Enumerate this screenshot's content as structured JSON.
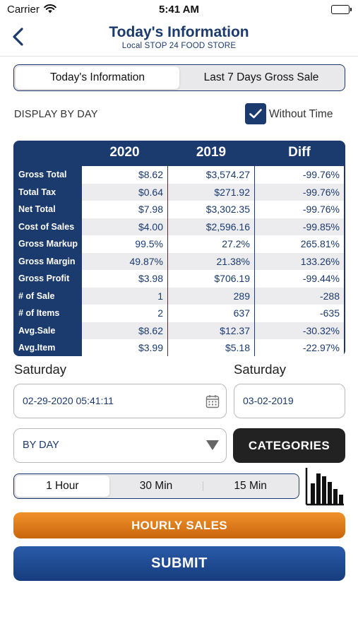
{
  "status_bar": {
    "carrier": "Carrier",
    "time": "5:41 AM"
  },
  "header": {
    "title": "Today's Information",
    "subtitle": "Local STOP 24 FOOD STORE"
  },
  "tabs": [
    {
      "label": "Today's Information",
      "active": true
    },
    {
      "label": "Last 7 Days Gross Sale",
      "active": false
    }
  ],
  "display_by_label": "DISPLAY BY DAY",
  "without_time": {
    "label": "Without Time",
    "checked": true
  },
  "table": {
    "headers": [
      "2020",
      "2019",
      "Diff"
    ],
    "rows": [
      {
        "label": "Gross Total",
        "v2020": "$8.62",
        "v2019": "$3,574.27",
        "diff": "-99.76%"
      },
      {
        "label": "Total Tax",
        "v2020": "$0.64",
        "v2019": "$271.92",
        "diff": "-99.76%"
      },
      {
        "label": "Net Total",
        "v2020": "$7.98",
        "v2019": "$3,302.35",
        "diff": "-99.76%"
      },
      {
        "label": "Cost of Sales",
        "v2020": "$4.00",
        "v2019": "$2,596.16",
        "diff": "-99.85%"
      },
      {
        "label": "Gross Markup",
        "v2020": "99.5%",
        "v2019": "27.2%",
        "diff": "265.81%"
      },
      {
        "label": "Gross Margin",
        "v2020": "49.87%",
        "v2019": "21.38%",
        "diff": "133.26%"
      },
      {
        "label": "Gross Profit",
        "v2020": "$3.98",
        "v2019": "$706.19",
        "diff": "-99.44%"
      },
      {
        "label": "# of Sale",
        "v2020": "1",
        "v2019": "289",
        "diff": "-288"
      },
      {
        "label": "# of Items",
        "v2020": "2",
        "v2019": "637",
        "diff": "-635"
      },
      {
        "label": "Avg.Sale",
        "v2020": "$8.62",
        "v2019": "$12.37",
        "diff": "-30.32%"
      },
      {
        "label": "Avg.Item",
        "v2020": "$3.99",
        "v2019": "$5.18",
        "diff": "-22.97%"
      }
    ]
  },
  "date_left": {
    "day": "Saturday",
    "value": "02-29-2020 05:41:11"
  },
  "date_right": {
    "day": "Saturday",
    "value": "03-02-2019"
  },
  "dropdown": {
    "value": "BY DAY"
  },
  "categories_label": "CATEGORIES",
  "intervals": [
    {
      "label": "1 Hour",
      "active": true
    },
    {
      "label": "30 Min",
      "active": false
    },
    {
      "label": "15 Min",
      "active": false
    }
  ],
  "hourly_sales_label": "HOURLY SALES",
  "submit_label": "SUBMIT",
  "colors": {
    "primary": "#1b3a6e",
    "orange": "#e07b17",
    "dark": "#222222"
  },
  "icons": [
    "wifi-icon",
    "battery-icon",
    "back-chevron-icon",
    "checkmark-icon",
    "calendar-icon",
    "caret-down-icon",
    "bar-chart-icon"
  ]
}
